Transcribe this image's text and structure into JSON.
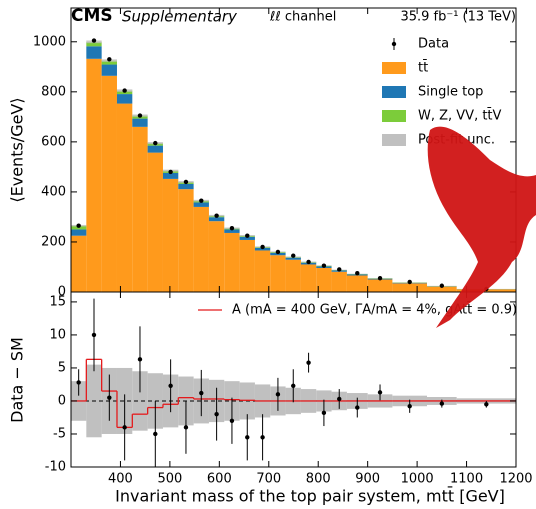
{
  "header": {
    "experiment": "CMS",
    "label": "Supplementary",
    "channel": "ℓℓ channel",
    "lumi": "35.9 fb⁻¹ (13 TeV)"
  },
  "chart_data": [
    {
      "type": "histogram",
      "stacked": true,
      "ylabel": "⟨Events/GeV⟩",
      "legend": "upper right",
      "bins": [
        300,
        331,
        362,
        393,
        424,
        455,
        486,
        517,
        548,
        579,
        610,
        641,
        672,
        703,
        734,
        765,
        796,
        827,
        858,
        900,
        950,
        1020,
        1080,
        1200
      ],
      "xlim": [
        300,
        1200
      ],
      "xticks": [
        400,
        500,
        600,
        700,
        800,
        900,
        1000,
        1100,
        1200
      ],
      "ylim": [
        0,
        1135
      ],
      "yticks": [
        0,
        200,
        400,
        600,
        800,
        1000
      ],
      "series": [
        {
          "name": "tt̄",
          "color": "#ff9a1c",
          "values": [
            225,
            932,
            864,
            753,
            660,
            557,
            452,
            411,
            340,
            283,
            236,
            208,
            166,
            147,
            129,
            110,
            96,
            81,
            66,
            50,
            34.5,
            21.5,
            10.7
          ]
        },
        {
          "name": "Single top",
          "color": "#1f77b4",
          "values": [
            25,
            50,
            45,
            38,
            33,
            28,
            24,
            21,
            18,
            16,
            14,
            12,
            10,
            9,
            8,
            7,
            6,
            5,
            4,
            3,
            2,
            1.5,
            0.8
          ]
        },
        {
          "name": "W, Z, VV, tt̄V",
          "color": "#7ccc3a",
          "values": [
            15,
            18,
            16,
            14,
            12,
            10,
            9,
            8,
            7,
            6,
            5,
            5,
            4,
            4,
            3,
            3,
            3,
            2,
            2,
            2,
            1.5,
            1,
            0.5
          ]
        }
      ],
      "uncertainty": {
        "name": "Post-fit unc.",
        "color": "#c0c0c0",
        "values": [
          3,
          5.5,
          5,
          5,
          4.5,
          4.2,
          4,
          3.7,
          3.4,
          3.2,
          3,
          2.8,
          2.5,
          2.2,
          2,
          1.8,
          1.6,
          1.4,
          1.2,
          1,
          0.8,
          0.6,
          0.4
        ]
      },
      "data": {
        "name": "Data",
        "color": "#000000",
        "values": [
          265,
          1005,
          930,
          805,
          705,
          595,
          480,
          440,
          365,
          305,
          255,
          225,
          180,
          160,
          145,
          120,
          105,
          90,
          75,
          55,
          40,
          25,
          12
        ],
        "errors": [
          3,
          6,
          5.5,
          5,
          4.8,
          4.4,
          3.9,
          3.8,
          3.4,
          3.1,
          2.9,
          2.7,
          2.4,
          2.3,
          2.2,
          2,
          1.8,
          1.7,
          1.5,
          1.1,
          0.9,
          0.6,
          0.3
        ]
      }
    },
    {
      "type": "errorbar",
      "ylabel": "Data − SM",
      "xlabel": "Invariant mass of the top pair system, mtt̄ [GeV]",
      "bins": [
        300,
        331,
        362,
        393,
        424,
        455,
        486,
        517,
        548,
        579,
        610,
        641,
        672,
        703,
        734,
        765,
        796,
        827,
        858,
        900,
        950,
        1020,
        1080,
        1200
      ],
      "xlim": [
        300,
        1200
      ],
      "xticks": [
        400,
        500,
        600,
        700,
        800,
        900,
        1000,
        1100,
        1200
      ],
      "ylim": [
        -10,
        16.5
      ],
      "yticks": [
        -10,
        -5,
        0,
        5,
        10,
        15
      ],
      "data": {
        "values": [
          2.8,
          10,
          0.5,
          -4,
          6.3,
          -5,
          2.3,
          -4,
          1.2,
          -2,
          -3,
          -5.5,
          -5.5,
          1,
          2.3,
          5.8,
          -1.8,
          0.3,
          -1,
          1.3,
          -0.8,
          -0.4,
          -0.5
        ],
        "errors": [
          2,
          5.5,
          3.5,
          5,
          5,
          5,
          4,
          4,
          3.5,
          4,
          3.5,
          3.5,
          3.5,
          2.5,
          2.5,
          1.5,
          2,
          1.5,
          1.5,
          1.2,
          1,
          0.6,
          0.5
        ]
      },
      "uncertainty": {
        "color": "#c0c0c0",
        "values": [
          3,
          5.5,
          5,
          5,
          4.5,
          4.2,
          4,
          3.7,
          3.4,
          3.2,
          3,
          2.8,
          2.5,
          2.2,
          2,
          1.8,
          1.6,
          1.4,
          1.2,
          1,
          0.8,
          0.6,
          0.4
        ]
      },
      "signal": {
        "name": "A (mA = 400 GeV, ΓA/mA = 4%, gAtt̄ = 0.9)",
        "color": "#e41a1c",
        "values": [
          0,
          6.3,
          1.5,
          -4,
          -2,
          -1,
          -0.5,
          0.5,
          0.3,
          0.3,
          0.2,
          0.1,
          0,
          0,
          0,
          0,
          0,
          0,
          0,
          0,
          0,
          0,
          0
        ]
      }
    }
  ]
}
